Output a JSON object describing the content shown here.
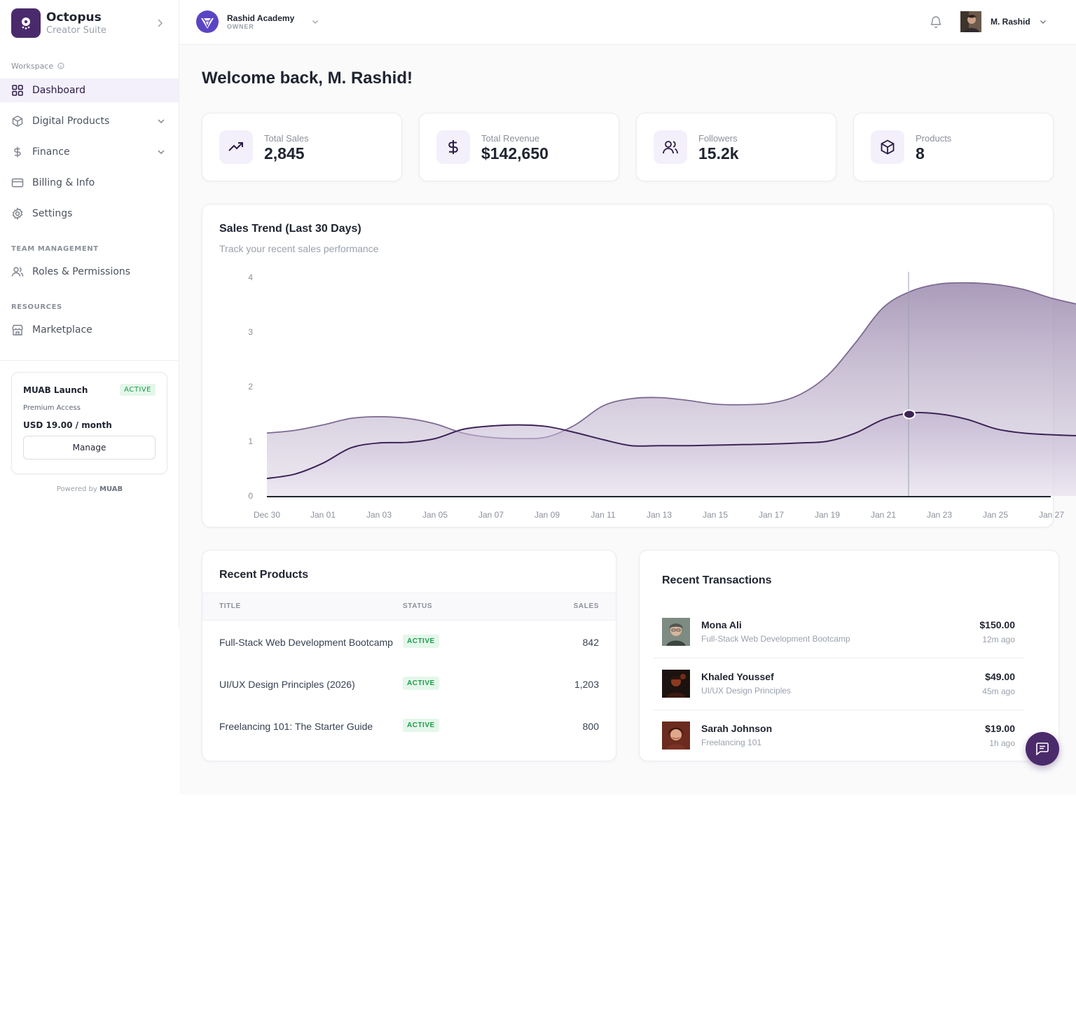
{
  "brand": {
    "name": "Octopus",
    "subtitle": "Creator Suite",
    "accent": "#4a2a6b"
  },
  "sidebar": {
    "workspace_label": "Workspace",
    "items": [
      {
        "label": "Dashboard",
        "icon": "grid-icon",
        "active": true
      },
      {
        "label": "Digital Products",
        "icon": "box-icon",
        "expandable": true
      },
      {
        "label": "Finance",
        "icon": "dollar-icon",
        "expandable": true
      },
      {
        "label": "Billing & Info",
        "icon": "credit-card-icon"
      },
      {
        "label": "Settings",
        "icon": "gear-icon"
      }
    ],
    "team_label": "TEAM MANAGEMENT",
    "team_items": [
      {
        "label": "Roles & Permissions",
        "icon": "users-icon"
      }
    ],
    "resources_label": "RESOURCES",
    "resource_items": [
      {
        "label": "Marketplace",
        "icon": "store-icon"
      }
    ],
    "plan": {
      "name": "MUAB Launch",
      "status": "ACTIVE",
      "access": "Premium Access",
      "price": "USD 19.00 / month",
      "manage_label": "Manage"
    },
    "powered_prefix": "Powered by",
    "powered_brand": "MUAB"
  },
  "topbar": {
    "org_name": "Rashid Academy",
    "org_role": "OWNER",
    "user_name": "M. Rashid"
  },
  "main": {
    "welcome": "Welcome back, M. Rashid!",
    "stats": [
      {
        "label": "Total Sales",
        "value": "2,845",
        "icon": "trending-up-icon"
      },
      {
        "label": "Total Revenue",
        "value": "$142,650",
        "icon": "dollar-icon"
      },
      {
        "label": "Followers",
        "value": "15.2k",
        "icon": "users-icon"
      },
      {
        "label": "Products",
        "value": "8",
        "icon": "box-icon"
      }
    ],
    "chart": {
      "title": "Sales Trend (Last 30 Days)",
      "subtitle": "Track your recent sales performance"
    },
    "products": {
      "title": "Recent Products",
      "columns": [
        "TITLE",
        "STATUS",
        "SALES"
      ],
      "rows": [
        {
          "title": "Full-Stack Web Development Bootcamp",
          "status": "ACTIVE",
          "sales": "842"
        },
        {
          "title": "UI/UX Design Principles (2026)",
          "status": "ACTIVE",
          "sales": "1,203"
        },
        {
          "title": "Freelancing 101: The Starter Guide",
          "status": "ACTIVE",
          "sales": "800"
        }
      ]
    },
    "transactions": {
      "title": "Recent Transactions",
      "rows": [
        {
          "name": "Mona Ali",
          "product": "Full-Stack Web Development Bootcamp",
          "amount": "$150.00",
          "time": "12m ago"
        },
        {
          "name": "Khaled Youssef",
          "product": "UI/UX Design Principles",
          "amount": "$49.00",
          "time": "45m ago"
        },
        {
          "name": "Sarah Johnson",
          "product": "Freelancing 101",
          "amount": "$19.00",
          "time": "1h ago"
        }
      ]
    }
  },
  "chart_data": {
    "type": "area",
    "x": [
      "Dec 30",
      "Dec 31",
      "Jan 01",
      "Jan 02",
      "Jan 03",
      "Jan 04",
      "Jan 05",
      "Jan 06",
      "Jan 07",
      "Jan 08",
      "Jan 09",
      "Jan 10",
      "Jan 11",
      "Jan 12",
      "Jan 13",
      "Jan 14",
      "Jan 15",
      "Jan 16",
      "Jan 17",
      "Jan 18",
      "Jan 19",
      "Jan 20",
      "Jan 21",
      "Jan 22",
      "Jan 23",
      "Jan 24",
      "Jan 25",
      "Jan 26",
      "Jan 27",
      "Jan 28"
    ],
    "x_ticks": [
      "Dec 30",
      "Jan 01",
      "Jan 03",
      "Jan 05",
      "Jan 07",
      "Jan 09",
      "Jan 11",
      "Jan 13",
      "Jan 15",
      "Jan 17",
      "Jan 19",
      "Jan 21",
      "Jan 23",
      "Jan 25",
      "Jan 27"
    ],
    "series": [
      {
        "values": [
          1.15,
          1.2,
          1.3,
          1.42,
          1.45,
          1.42,
          1.32,
          1.15,
          1.07,
          1.05,
          1.08,
          1.3,
          1.65,
          1.78,
          1.8,
          1.75,
          1.68,
          1.67,
          1.7,
          1.85,
          2.2,
          2.8,
          3.45,
          3.75,
          3.88,
          3.9,
          3.87,
          3.78,
          3.62,
          3.5
        ]
      },
      {
        "values": [
          0.32,
          0.4,
          0.6,
          0.88,
          0.97,
          0.98,
          1.05,
          1.22,
          1.28,
          1.3,
          1.27,
          1.16,
          1.03,
          0.92,
          0.92,
          0.92,
          0.93,
          0.94,
          0.95,
          0.97,
          1.0,
          1.15,
          1.4,
          1.52,
          1.5,
          1.4,
          1.23,
          1.15,
          1.12,
          1.1
        ]
      }
    ],
    "ylim": [
      0,
      4
    ],
    "yticks": [
      0,
      1,
      2,
      3,
      4
    ],
    "highlight_x": "Jan 22",
    "grid": false,
    "legend": "none"
  }
}
